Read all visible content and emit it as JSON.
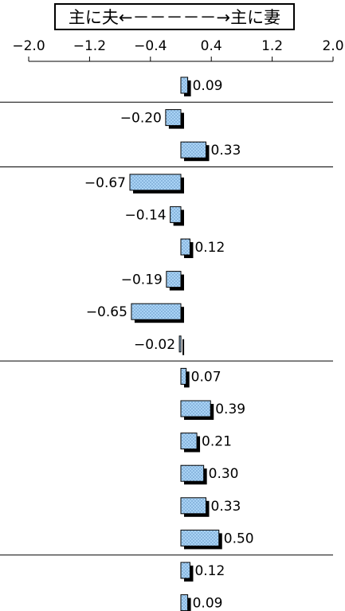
{
  "chart_data": {
    "type": "bar",
    "orientation": "horizontal",
    "title": "主に夫←－－－－－→主に妻",
    "xlim": [
      -2.0,
      2.0
    ],
    "xticks": [
      "−2.0",
      "−1.2",
      "−0.4",
      "0.4",
      "1.2",
      "2.0"
    ],
    "xtick_values": [
      -2.0,
      -1.2,
      -0.4,
      0.4,
      1.2,
      2.0
    ],
    "series": [
      {
        "values": [
          0.09,
          -0.2,
          0.33,
          -0.67,
          -0.14,
          0.12,
          -0.19,
          -0.65,
          -0.02,
          0.07,
          0.39,
          0.21,
          0.3,
          0.33,
          0.5,
          0.12,
          0.09
        ],
        "labels": [
          "0.09",
          "−0.20",
          "0.33",
          "−0.67",
          "−0.14",
          "0.12",
          "−0.19",
          "−0.65",
          "−0.02",
          "0.07",
          "0.39",
          "0.21",
          "0.30",
          "0.33",
          "0.50",
          "0.12",
          "0.09"
        ]
      }
    ],
    "group_separators_after_index": [
      0,
      2,
      8,
      14
    ],
    "grid": false,
    "legend": "none",
    "colors": {
      "bar_fill": "#a9d3f5",
      "bar_dots": "#3a6ea5",
      "bar_shadow": "#000000",
      "axis": "#000000"
    }
  }
}
